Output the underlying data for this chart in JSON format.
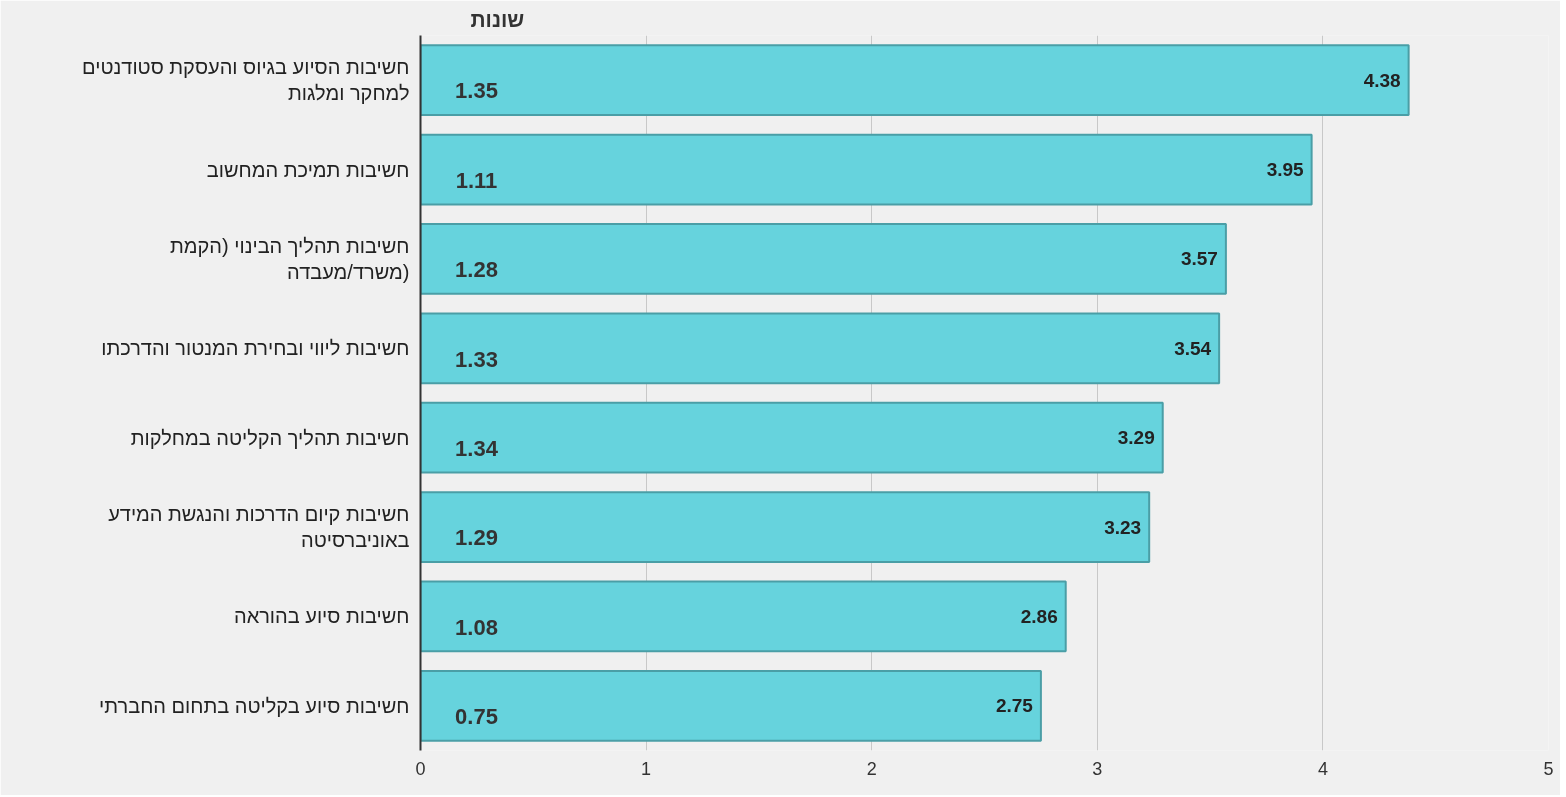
{
  "chart_data": {
    "type": "bar",
    "orientation": "horizontal",
    "categories": [
      "חשיבות הסיוע בגיוס והעסקת סטודנטים למחקר ומלגות",
      "חשיבות תמיכת המחשוב",
      "חשיבות תהליך הבינוי (הקמת משרד/מעבדה)",
      "חשיבות ליווי ובחירת המנטור והדרכתו",
      "חשיבות תהליך הקליטה במחלקות",
      "חשיבות קיום הדרכות והנגשת המידע באוניברסיטה",
      "חשיבות סיוע בהוראה",
      "חשיבות סיוע בקליטה בתחום החברתי"
    ],
    "values": [
      4.38,
      3.95,
      3.57,
      3.54,
      3.29,
      3.23,
      2.86,
      2.75
    ],
    "color": "#66d3dd",
    "data_labels": true,
    "xlim": [
      0,
      5
    ],
    "xticks": [
      0,
      1,
      2,
      3,
      4,
      5
    ],
    "grid": "x",
    "annotations": [
      "שונות",
      {
        "text": "1.35",
        "y": "חשיבות הסיוע בגיוס והעסקת סטודנטים למחקר ומלגות"
      },
      {
        "text": "1.11",
        "y": "חשיבות תמיכת המחשוב"
      },
      {
        "text": "1.28",
        "y": "חשיבות תהליך הבינוי (הקמת משרד/מעבדה)"
      },
      {
        "text": "1.33",
        "y": "חשיבות ליווי ובחירת המנטור והדרכתו"
      },
      {
        "text": "1.34",
        "y": "חשיבות תהליך הקליטה במחלקות"
      },
      {
        "text": "1.29",
        "y": "חשיבות קיום הדרכות והנגשת המידע באוניברסיטה"
      },
      {
        "text": "1.08",
        "y": "חשיבות סיוע בהוראה"
      },
      {
        "text": "0.75",
        "y": "חשיבות סיוע בקליטה בתחום החברתי"
      }
    ]
  }
}
